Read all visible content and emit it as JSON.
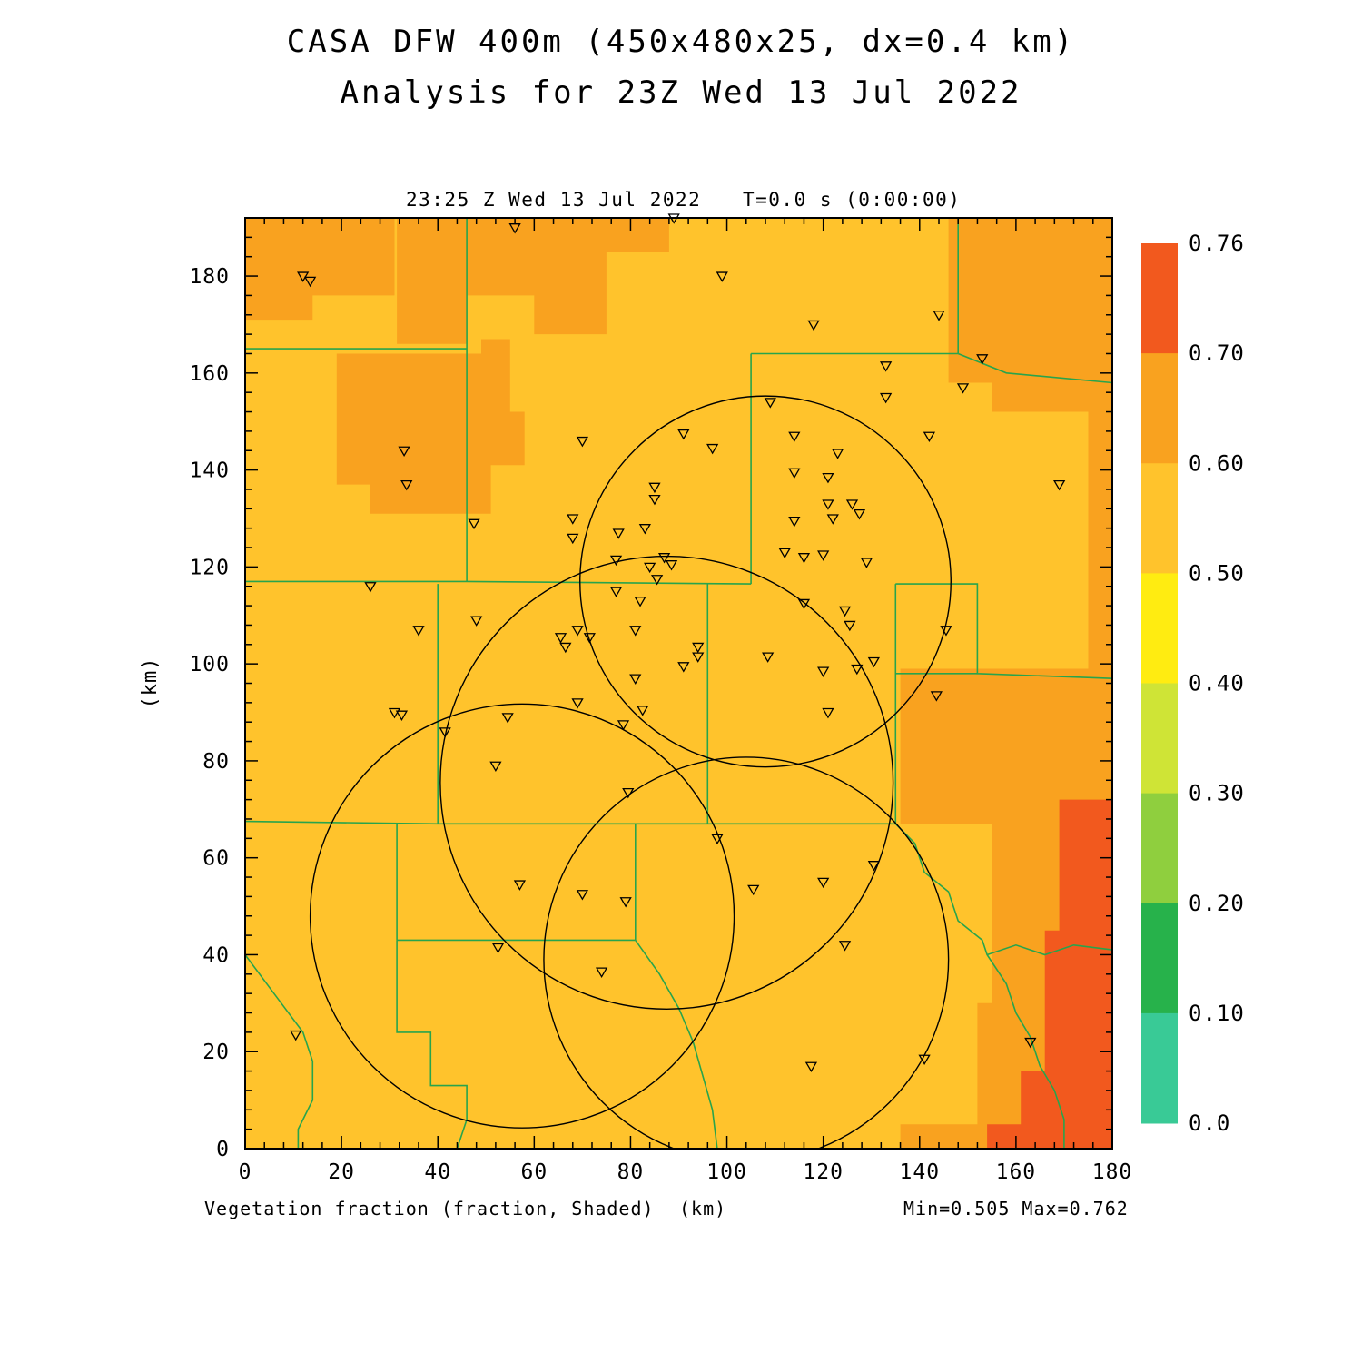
{
  "title": {
    "line1": "CASA DFW 400m (450x480x25, dx=0.4 km)",
    "line2": "Analysis for 23Z Wed 13 Jul 2022"
  },
  "plot_header": {
    "time": "23:25 Z Wed 13 Jul 2022",
    "t_offset": "T=0.0 s (0:00:00)"
  },
  "footer": {
    "label": "Vegetation fraction (fraction, Shaded)",
    "units": "(km)",
    "minmax": "Min=0.505 Max=0.762"
  },
  "y_axis_label": "(km)",
  "colors": {
    "title": "#A42F25",
    "map_base": "#FFC32C",
    "county_line": "#28A44C",
    "ring": "#000000"
  },
  "colorbar": {
    "boundary_labels": [
      "0.76",
      "0.70",
      "0.60",
      "0.50",
      "0.40",
      "0.30",
      "0.20",
      "0.10",
      "0.0"
    ],
    "segment_colors_top_to_bottom": [
      "#F2591E",
      "#F9A21F",
      "#FFC32C",
      "#FFEC11",
      "#CFE436",
      "#8FCF3E",
      "#27B24B",
      "#39CA96"
    ]
  },
  "chart_data": {
    "type": "heatmap",
    "field_label": "Vegetation fraction (fraction, Shaded)",
    "units": "km",
    "min": 0.505,
    "max": 0.762,
    "x_range": [
      0,
      180
    ],
    "y_range": [
      0,
      192
    ],
    "x_ticks": [
      0,
      20,
      40,
      60,
      80,
      100,
      120,
      140,
      160,
      180
    ],
    "y_ticks": [
      0,
      20,
      40,
      60,
      80,
      100,
      120,
      140,
      160,
      180
    ],
    "minor_tick_interval": 4,
    "base_value_band": "0.50-0.60",
    "shaded_patches": [
      {
        "band": "0.60-0.70",
        "color": "#F9A21F",
        "points": [
          [
            0,
            192
          ],
          [
            31,
            192
          ],
          [
            31,
            176
          ],
          [
            14,
            176
          ],
          [
            14,
            171
          ],
          [
            0,
            171
          ]
        ]
      },
      {
        "band": "0.60-0.70",
        "color": "#F9A21F",
        "points": [
          [
            19,
            164
          ],
          [
            49,
            164
          ],
          [
            49,
            167
          ],
          [
            55,
            167
          ],
          [
            55,
            152
          ],
          [
            58,
            152
          ],
          [
            58,
            141
          ],
          [
            51,
            141
          ],
          [
            51,
            131
          ],
          [
            26,
            131
          ],
          [
            26,
            137
          ],
          [
            19,
            137
          ]
        ]
      },
      {
        "band": "0.60-0.70",
        "color": "#F9A21F",
        "points": [
          [
            31.5,
            192
          ],
          [
            88,
            192
          ],
          [
            88,
            185
          ],
          [
            75,
            185
          ],
          [
            75,
            168
          ],
          [
            60,
            168
          ],
          [
            60,
            176
          ],
          [
            46,
            176
          ],
          [
            46,
            166
          ],
          [
            31.5,
            166
          ]
        ]
      },
      {
        "band": "0.60-0.70",
        "color": "#F9A21F",
        "points": [
          [
            146,
            192
          ],
          [
            180,
            192
          ],
          [
            180,
            99
          ],
          [
            175,
            99
          ],
          [
            175,
            152
          ],
          [
            155,
            152
          ],
          [
            155,
            158
          ],
          [
            146,
            158
          ]
        ]
      },
      {
        "band": "0.60-0.70",
        "color": "#F9A21F",
        "points": [
          [
            136,
            99
          ],
          [
            180,
            99
          ],
          [
            180,
            0
          ],
          [
            136,
            0
          ],
          [
            136,
            5
          ],
          [
            152,
            5
          ],
          [
            152,
            30
          ],
          [
            155,
            30
          ],
          [
            155,
            67
          ],
          [
            136,
            67
          ]
        ]
      },
      {
        "band": "0.70-0.76",
        "color": "#F2591E",
        "points": [
          [
            169,
            72
          ],
          [
            180,
            72
          ],
          [
            180,
            0
          ],
          [
            154,
            0
          ],
          [
            154,
            5
          ],
          [
            161,
            5
          ],
          [
            161,
            16
          ],
          [
            166,
            16
          ],
          [
            166,
            45
          ],
          [
            169,
            45
          ]
        ]
      }
    ],
    "county_lines": [
      [
        [
          0,
          165
        ],
        [
          46,
          165
        ]
      ],
      [
        [
          46,
          192
        ],
        [
          46,
          117
        ]
      ],
      [
        [
          0,
          117
        ],
        [
          46,
          117
        ],
        [
          105,
          116.5
        ]
      ],
      [
        [
          105,
          164
        ],
        [
          105,
          116.5
        ]
      ],
      [
        [
          105,
          164
        ],
        [
          148,
          164
        ]
      ],
      [
        [
          148,
          192
        ],
        [
          148,
          164
        ]
      ],
      [
        [
          148,
          164
        ],
        [
          158,
          160
        ],
        [
          180,
          158
        ]
      ],
      [
        [
          40,
          116.5
        ],
        [
          40,
          67
        ]
      ],
      [
        [
          0,
          67.5
        ],
        [
          40,
          67
        ],
        [
          96,
          67
        ],
        [
          135,
          67
        ]
      ],
      [
        [
          96,
          116.5
        ],
        [
          96,
          67
        ]
      ],
      [
        [
          135,
          116.5
        ],
        [
          135,
          67
        ]
      ],
      [
        [
          135,
          116.5
        ],
        [
          152,
          116.5
        ],
        [
          152,
          98
        ],
        [
          180,
          97
        ]
      ],
      [
        [
          135,
          98
        ],
        [
          152,
          98
        ]
      ],
      [
        [
          135,
          67
        ],
        [
          139,
          63
        ],
        [
          141,
          57
        ],
        [
          146,
          53
        ],
        [
          148,
          47
        ],
        [
          153,
          43
        ],
        [
          154,
          40
        ],
        [
          158,
          34
        ],
        [
          160,
          28
        ],
        [
          163,
          23
        ],
        [
          165,
          17
        ],
        [
          168,
          12
        ],
        [
          170,
          6
        ],
        [
          170,
          0
        ]
      ],
      [
        [
          154,
          40
        ],
        [
          160,
          42
        ],
        [
          166,
          40
        ],
        [
          172,
          42
        ],
        [
          180,
          41
        ]
      ],
      [
        [
          81,
          67
        ],
        [
          81,
          43
        ]
      ],
      [
        [
          81,
          43
        ],
        [
          86,
          36
        ],
        [
          90,
          29
        ],
        [
          93,
          22
        ],
        [
          95,
          15
        ],
        [
          97,
          8
        ],
        [
          98,
          0
        ]
      ],
      [
        [
          31.5,
          43
        ],
        [
          81,
          43
        ]
      ],
      [
        [
          31.5,
          67
        ],
        [
          31.5,
          43
        ]
      ],
      [
        [
          31.5,
          43
        ],
        [
          31.5,
          24
        ],
        [
          38.5,
          24
        ],
        [
          38.5,
          13
        ],
        [
          46,
          13
        ],
        [
          46,
          6
        ],
        [
          44,
          0
        ]
      ],
      [
        [
          0,
          40
        ],
        [
          6,
          32
        ],
        [
          12,
          24
        ],
        [
          14,
          18
        ],
        [
          14,
          10
        ],
        [
          11,
          4
        ],
        [
          11,
          0
        ]
      ]
    ],
    "radar_rings": [
      {
        "cx": 108,
        "cy": 117,
        "r": 38.5
      },
      {
        "cx": 87.5,
        "cy": 75.5,
        "r": 47
      },
      {
        "cx": 57.5,
        "cy": 48,
        "r": 44
      },
      {
        "cx": 104,
        "cy": 39,
        "r": 42
      }
    ],
    "stations": [
      [
        89,
        192
      ],
      [
        56,
        190
      ],
      [
        12,
        180
      ],
      [
        13.5,
        179
      ],
      [
        99,
        180
      ],
      [
        144,
        172
      ],
      [
        118,
        170
      ],
      [
        133,
        161.5
      ],
      [
        153,
        163
      ],
      [
        109,
        154
      ],
      [
        133,
        155
      ],
      [
        149,
        157
      ],
      [
        91,
        147.5
      ],
      [
        114,
        147
      ],
      [
        70,
        146
      ],
      [
        123,
        143.5
      ],
      [
        97,
        144.5
      ],
      [
        142,
        147
      ],
      [
        33,
        144
      ],
      [
        114,
        139.5
      ],
      [
        121,
        138.5
      ],
      [
        33.5,
        137
      ],
      [
        169,
        137
      ],
      [
        85,
        136.5
      ],
      [
        85,
        134
      ],
      [
        121,
        133
      ],
      [
        126,
        133
      ],
      [
        114,
        129.5
      ],
      [
        122,
        130
      ],
      [
        127.5,
        131
      ],
      [
        47.5,
        129
      ],
      [
        68,
        130
      ],
      [
        68,
        126
      ],
      [
        112,
        123
      ],
      [
        77.5,
        127
      ],
      [
        83,
        128
      ],
      [
        77,
        121.5
      ],
      [
        87,
        122
      ],
      [
        116,
        122
      ],
      [
        120,
        122.5
      ],
      [
        129,
        121
      ],
      [
        26,
        116
      ],
      [
        84,
        120
      ],
      [
        85.5,
        117.5
      ],
      [
        88.5,
        120.5
      ],
      [
        77,
        115
      ],
      [
        82,
        113
      ],
      [
        116,
        112.5
      ],
      [
        124.5,
        111
      ],
      [
        36,
        107
      ],
      [
        48,
        109
      ],
      [
        125.5,
        108
      ],
      [
        65.5,
        105.5
      ],
      [
        69,
        107
      ],
      [
        71.5,
        105.5
      ],
      [
        81,
        107
      ],
      [
        66.5,
        103.5
      ],
      [
        94,
        103.5
      ],
      [
        94,
        101.5
      ],
      [
        91,
        99.5
      ],
      [
        108.5,
        101.5
      ],
      [
        130.5,
        100.5
      ],
      [
        120,
        98.5
      ],
      [
        127,
        99
      ],
      [
        81,
        97
      ],
      [
        145.5,
        107
      ],
      [
        69,
        92
      ],
      [
        82.5,
        90.5
      ],
      [
        78.5,
        87.5
      ],
      [
        121,
        90
      ],
      [
        143.5,
        93.5
      ],
      [
        31,
        90
      ],
      [
        32.5,
        89.5
      ],
      [
        41.5,
        86
      ],
      [
        54.5,
        89
      ],
      [
        52,
        79
      ],
      [
        79.5,
        73.5
      ],
      [
        98,
        64
      ],
      [
        130.5,
        58.5
      ],
      [
        57,
        54.5
      ],
      [
        105.5,
        53.5
      ],
      [
        120,
        55
      ],
      [
        70,
        52.5
      ],
      [
        79,
        51
      ],
      [
        52.5,
        41.5
      ],
      [
        124.5,
        42
      ],
      [
        74,
        36.5
      ],
      [
        10.5,
        23.5
      ],
      [
        163,
        22
      ],
      [
        117.5,
        17
      ],
      [
        141,
        18.5
      ]
    ]
  }
}
